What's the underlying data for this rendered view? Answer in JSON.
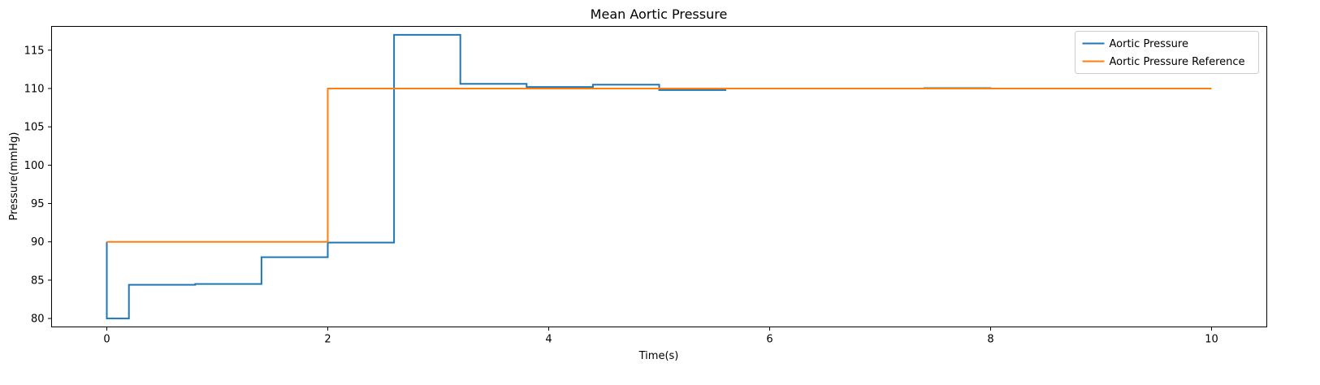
{
  "chart_data": {
    "type": "line",
    "title": "Mean Aortic Pressure",
    "xlabel": "Time(s)",
    "ylabel": "Pressure(mmHg)",
    "xlim": [
      -0.5,
      10.5
    ],
    "ylim": [
      78.9,
      118.1
    ],
    "xticks": [
      0,
      2,
      4,
      6,
      8,
      10
    ],
    "xtick_labels": [
      "0",
      "2",
      "4",
      "6",
      "8",
      "10"
    ],
    "yticks": [
      80,
      85,
      90,
      95,
      100,
      105,
      110,
      115
    ],
    "ytick_labels": [
      "80",
      "85",
      "90",
      "95",
      "100",
      "105",
      "110",
      "115"
    ],
    "grid": false,
    "legend_position": "top-right",
    "step_style": "post",
    "series": [
      {
        "name": "Aortic Pressure",
        "color": "#1f77b4",
        "x": [
          0,
          0,
          0.2,
          0.8,
          1.4,
          2.0,
          2.6,
          3.2,
          3.8,
          4.4,
          5.0,
          5.6,
          7.4,
          8.0,
          10.0
        ],
        "y": [
          90,
          80,
          84.4,
          84.5,
          88.0,
          89.9,
          117.0,
          110.6,
          110.2,
          110.5,
          109.8,
          110.0,
          110.05,
          110.0,
          110.0
        ]
      },
      {
        "name": "Aortic Pressure Reference",
        "color": "#ff7f0e",
        "x": [
          0,
          2,
          10
        ],
        "y": [
          90,
          110,
          110
        ]
      }
    ]
  }
}
